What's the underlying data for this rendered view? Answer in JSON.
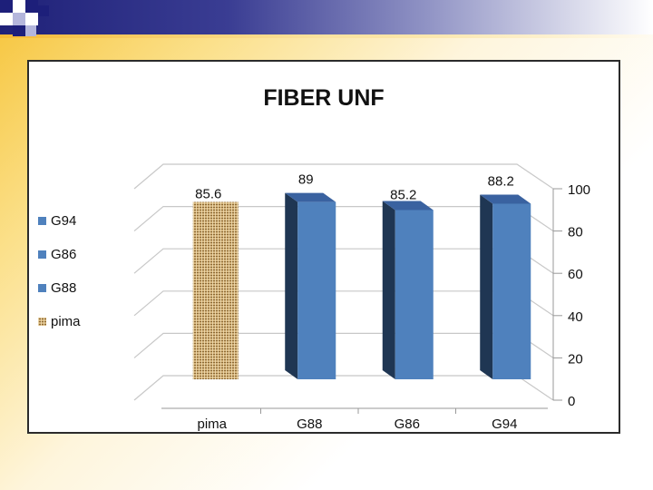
{
  "chart_data": {
    "type": "bar",
    "title": "FIBER UNF",
    "categories": [
      "pima",
      "G88",
      "G86",
      "G94"
    ],
    "values": [
      85.6,
      89,
      85.2,
      88.2
    ],
    "data_labels": [
      "85.6",
      "89",
      "85.2",
      "88.2"
    ],
    "ylim": [
      0,
      100
    ],
    "y_ticks": [
      "0",
      "20",
      "40",
      "60",
      "80",
      "100"
    ],
    "legend": [
      "G94",
      "G86",
      "G88",
      "pima"
    ],
    "legend_position": "left",
    "grid": true,
    "style": "3d-column",
    "colors": {
      "bar_front": "#4f81bd",
      "bar_side": "#1f3653",
      "bar_top": "#3a62a0",
      "pima_fill": "#d3b27a",
      "pima_pattern": "#8d6a35",
      "grid": "#c8c8c8"
    }
  }
}
